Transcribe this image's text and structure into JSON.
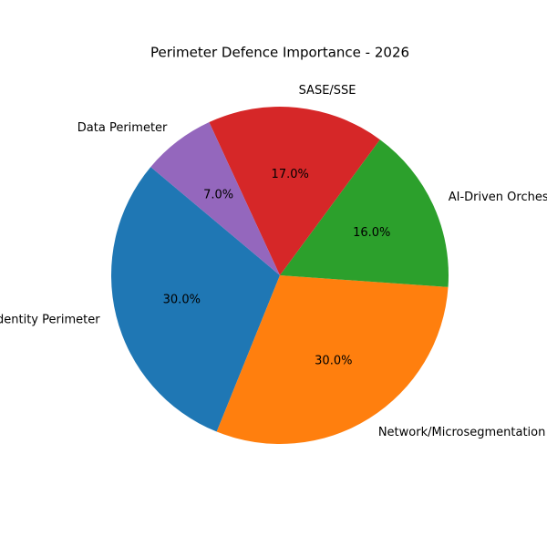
{
  "chart_data": {
    "type": "pie",
    "title": "Perimeter Defence Importance - 2026",
    "categories": [
      "Identity Perimeter",
      "Network/Microsegmentation",
      "AI-Driven Orchestration",
      "SASE/SSE",
      "Data Perimeter"
    ],
    "values": [
      30,
      30,
      16,
      17,
      7
    ],
    "value_labels": [
      "30.0%",
      "30.0%",
      "16.0%",
      "17.0%",
      "7.0%"
    ],
    "colors": [
      "#1f77b4",
      "#ff7f0e",
      "#2ca02c",
      "#d62728",
      "#9467bd"
    ],
    "start_angle": 140
  }
}
